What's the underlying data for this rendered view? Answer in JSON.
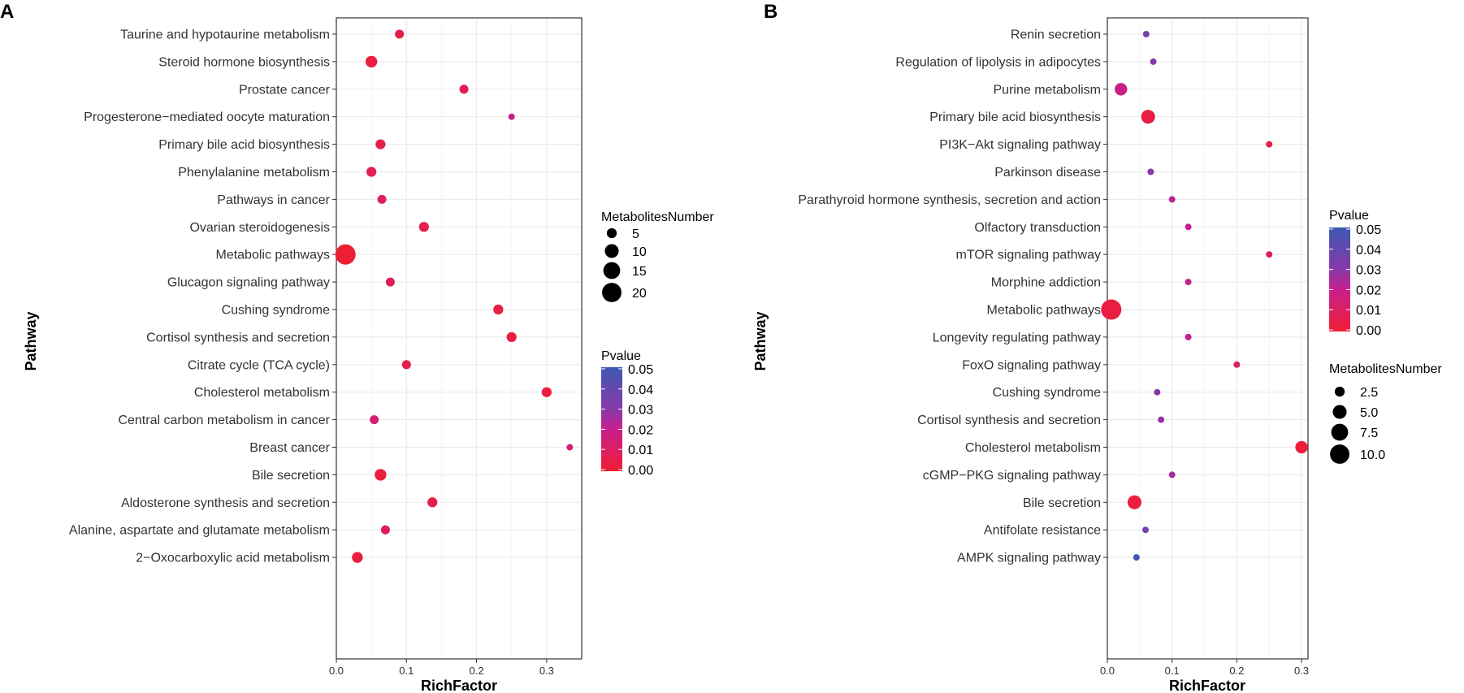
{
  "chart_data": [
    {
      "panel": "A",
      "type": "scatter",
      "xlabel": "RichFactor",
      "ylabel": "Pathway",
      "xlim": [
        0,
        0.35
      ],
      "xticks": [
        0.0,
        0.1,
        0.2,
        0.3
      ],
      "xtick_labels": [
        "0.0",
        "0.1",
        "0.2",
        "0.3"
      ],
      "grid": true,
      "points": [
        {
          "pathway": "Taurine and hypotaurine metabolism",
          "richfactor": 0.09,
          "count": 4,
          "pvalue": 0.005
        },
        {
          "pathway": "Steroid hormone biosynthesis",
          "richfactor": 0.05,
          "count": 7,
          "pvalue": 0.003
        },
        {
          "pathway": "Prostate cancer",
          "richfactor": 0.182,
          "count": 4,
          "pvalue": 0.007
        },
        {
          "pathway": "Progesterone−mediated oocyte maturation",
          "richfactor": 0.25,
          "count": 2,
          "pvalue": 0.02
        },
        {
          "pathway": "Primary bile acid biosynthesis",
          "richfactor": 0.063,
          "count": 5,
          "pvalue": 0.006
        },
        {
          "pathway": "Phenylalanine metabolism",
          "richfactor": 0.05,
          "count": 5,
          "pvalue": 0.007
        },
        {
          "pathway": "Pathways in cancer",
          "richfactor": 0.065,
          "count": 4,
          "pvalue": 0.01
        },
        {
          "pathway": "Ovarian steroidogenesis",
          "richfactor": 0.125,
          "count": 5,
          "pvalue": 0.005
        },
        {
          "pathway": "Metabolic pathways",
          "richfactor": 0.013,
          "count": 22,
          "pvalue": 0.001
        },
        {
          "pathway": "Glucagon signaling pathway",
          "richfactor": 0.077,
          "count": 4,
          "pvalue": 0.008
        },
        {
          "pathway": "Cushing syndrome",
          "richfactor": 0.231,
          "count": 5,
          "pvalue": 0.003
        },
        {
          "pathway": "Cortisol synthesis and secretion",
          "richfactor": 0.25,
          "count": 5,
          "pvalue": 0.004
        },
        {
          "pathway": "Citrate cycle (TCA cycle)",
          "richfactor": 0.1,
          "count": 4,
          "pvalue": 0.006
        },
        {
          "pathway": "Cholesterol metabolism",
          "richfactor": 0.3,
          "count": 5,
          "pvalue": 0.002
        },
        {
          "pathway": "Central carbon metabolism in cancer",
          "richfactor": 0.054,
          "count": 4,
          "pvalue": 0.013
        },
        {
          "pathway": "Breast cancer",
          "richfactor": 0.333,
          "count": 2,
          "pvalue": 0.015
        },
        {
          "pathway": "Bile secretion",
          "richfactor": 0.063,
          "count": 7,
          "pvalue": 0.003
        },
        {
          "pathway": "Aldosterone synthesis and secretion",
          "richfactor": 0.137,
          "count": 5,
          "pvalue": 0.005
        },
        {
          "pathway": "Alanine, aspartate and glutamate metabolism",
          "richfactor": 0.07,
          "count": 4,
          "pvalue": 0.009
        },
        {
          "pathway": "2−Oxocarboxylic acid metabolism",
          "richfactor": 0.03,
          "count": 6,
          "pvalue": 0.003
        }
      ],
      "size_legend": {
        "title": "MetabolitesNumber",
        "values": [
          5,
          10,
          15,
          20
        ],
        "labels": [
          "5",
          "10",
          "15",
          "20"
        ]
      },
      "color_legend": {
        "title": "Pvalue",
        "labels": [
          "0.05",
          "0.04",
          "0.03",
          "0.02",
          "0.01",
          "0.00"
        ],
        "min": 0.0,
        "max": 0.05
      }
    },
    {
      "panel": "B",
      "type": "scatter",
      "xlabel": "RichFactor",
      "ylabel": "Pathway",
      "xlim": [
        0,
        0.31
      ],
      "xticks": [
        0.0,
        0.1,
        0.2,
        0.3
      ],
      "xtick_labels": [
        "0.0",
        "0.1",
        "0.2",
        "0.3"
      ],
      "grid": true,
      "points": [
        {
          "pathway": "Renin secretion",
          "richfactor": 0.06,
          "count": 1,
          "pvalue": 0.035
        },
        {
          "pathway": "Regulation of lipolysis in adipocytes",
          "richfactor": 0.071,
          "count": 1,
          "pvalue": 0.03
        },
        {
          "pathway": "Purine metabolism",
          "richfactor": 0.021,
          "count": 4,
          "pvalue": 0.018
        },
        {
          "pathway": "Primary bile acid biosynthesis",
          "richfactor": 0.063,
          "count": 5,
          "pvalue": 0.004
        },
        {
          "pathway": "PI3K−Akt signaling pathway",
          "richfactor": 0.25,
          "count": 1,
          "pvalue": 0.005
        },
        {
          "pathway": "Parkinson disease",
          "richfactor": 0.067,
          "count": 1,
          "pvalue": 0.03
        },
        {
          "pathway": "Parathyroid hormone synthesis, secretion and action",
          "richfactor": 0.1,
          "count": 1,
          "pvalue": 0.022
        },
        {
          "pathway": "Olfactory transduction",
          "richfactor": 0.125,
          "count": 1,
          "pvalue": 0.02
        },
        {
          "pathway": "mTOR signaling pathway",
          "richfactor": 0.25,
          "count": 1,
          "pvalue": 0.008
        },
        {
          "pathway": "Morphine addiction",
          "richfactor": 0.125,
          "count": 1,
          "pvalue": 0.02
        },
        {
          "pathway": "Metabolic pathways",
          "richfactor": 0.006,
          "count": 11,
          "pvalue": 0.003
        },
        {
          "pathway": "Longevity regulating pathway",
          "richfactor": 0.125,
          "count": 1,
          "pvalue": 0.02
        },
        {
          "pathway": "FoxO signaling pathway",
          "richfactor": 0.2,
          "count": 1,
          "pvalue": 0.01
        },
        {
          "pathway": "Cushing syndrome",
          "richfactor": 0.077,
          "count": 1,
          "pvalue": 0.03
        },
        {
          "pathway": "Cortisol synthesis and secretion",
          "richfactor": 0.083,
          "count": 1,
          "pvalue": 0.028
        },
        {
          "pathway": "Cholesterol metabolism",
          "richfactor": 0.3,
          "count": 4,
          "pvalue": 0.002
        },
        {
          "pathway": "cGMP−PKG signaling pathway",
          "richfactor": 0.1,
          "count": 1,
          "pvalue": 0.025
        },
        {
          "pathway": "Bile secretion",
          "richfactor": 0.042,
          "count": 5,
          "pvalue": 0.003
        },
        {
          "pathway": "Antifolate resistance",
          "richfactor": 0.059,
          "count": 1,
          "pvalue": 0.035
        },
        {
          "pathway": "AMPK signaling pathway",
          "richfactor": 0.045,
          "count": 1,
          "pvalue": 0.048
        }
      ],
      "size_legend": {
        "title": "MetabolitesNumber",
        "values": [
          2.5,
          5.0,
          7.5,
          10.0
        ],
        "labels": [
          "2.5",
          "5.0",
          "7.5",
          "10.0"
        ]
      },
      "color_legend": {
        "title": "Pvalue",
        "labels": [
          "0.05",
          "0.04",
          "0.03",
          "0.02",
          "0.01",
          "0.00"
        ],
        "min": 0.0,
        "max": 0.05
      }
    }
  ]
}
